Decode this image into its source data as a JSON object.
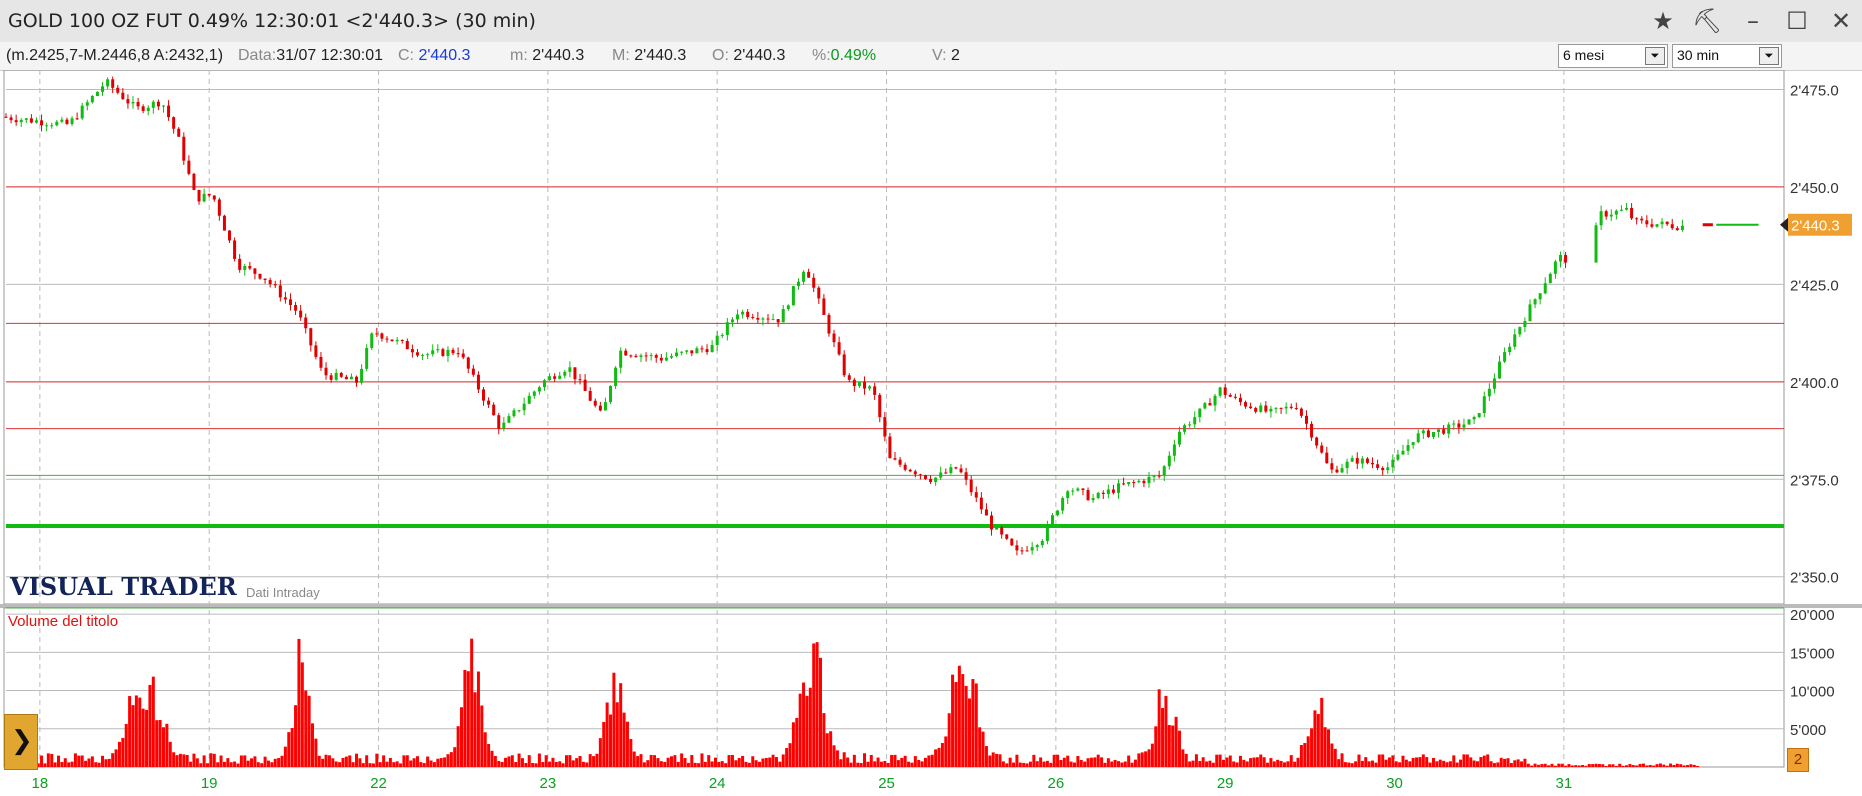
{
  "window": {
    "title": "GOLD 100 OZ FUT 0.49% 12:30:01  <2'440.3> (30 min)",
    "icons": [
      "star-icon",
      "hammer-icon",
      "minimize-icon",
      "maximize-icon",
      "close-icon"
    ],
    "star_glyph": "★",
    "hammer_glyph": "⛏",
    "minimize_glyph": "–",
    "maximize_glyph": "☐",
    "close_glyph": "✕"
  },
  "info": {
    "range": "(m.2425,7-M.2446,8 A:2432,1)",
    "data_label": "Data:",
    "data_value": "31/07 12:30:01",
    "c_label": "C:",
    "c_value": "2'440.3",
    "m_label": "m:",
    "m_value": "2'440.3",
    "M_label": "M:",
    "M_value": "2'440.3",
    "o_label": "O:",
    "o_value": "2'440.3",
    "pct_label": "%:",
    "pct_value": "0.49%",
    "v_label": "V:",
    "v_value": "2",
    "period_select": "6 mesi",
    "interval_select": "30 min",
    "arrow_glyph": "⏷"
  },
  "brand": {
    "logo": "VISUAL TRADER",
    "tag": "Dati Intraday",
    "logo_color": "#12245a"
  },
  "nav": {
    "glyph": "❯",
    "badge": "2"
  },
  "colors": {
    "up": "#11bb11",
    "down": "#e00000",
    "volume": "#ff0000",
    "grid": "#bbbbbb",
    "price_tag": "#f0a030",
    "axis_text": "#333333",
    "date_text": "#0aa020"
  },
  "chart_data": {
    "type": "candlestick",
    "price_axis": {
      "ylim": [
        2343,
        2480
      ],
      "ticks": [
        2350,
        2375,
        2400,
        2425,
        2450,
        2475
      ],
      "tick_labels": [
        "2'350.0",
        "2'375.0",
        "2'400.0",
        "2'425.0",
        "2'450.0",
        "2'475.0"
      ]
    },
    "last_price": 2440.3,
    "last_price_label": "2'440.3",
    "horizontal_lines": [
      {
        "y": 2450,
        "color": "#dd3333",
        "width": 1
      },
      {
        "y": 2415,
        "color": "#dd3333",
        "width": 1
      },
      {
        "y": 2400,
        "color": "#dd3333",
        "width": 1
      },
      {
        "y": 2388,
        "color": "#dd3333",
        "width": 1
      },
      {
        "y": 2376,
        "color": "#33bb33",
        "width": 1
      },
      {
        "y": 2363,
        "color": "#11bb11",
        "width": 4
      },
      {
        "y": 2342,
        "color": "#33bb33",
        "width": 1
      }
    ],
    "date_labels": [
      "18",
      "19",
      "22",
      "23",
      "24",
      "25",
      "26",
      "29",
      "30",
      "31"
    ],
    "date_positions": [
      0.2,
      1.2,
      2.2,
      3.2,
      4.2,
      5.2,
      6.2,
      7.2,
      8.2,
      9.2
    ],
    "x_range": [
      0,
      10.5
    ],
    "anchors": [
      [
        0.0,
        2468
      ],
      [
        0.4,
        2466
      ],
      [
        0.62,
        2477
      ],
      [
        0.8,
        2470
      ],
      [
        0.95,
        2472
      ],
      [
        1.05,
        2462
      ],
      [
        1.15,
        2447
      ],
      [
        1.25,
        2448
      ],
      [
        1.4,
        2430
      ],
      [
        1.55,
        2427
      ],
      [
        1.75,
        2418
      ],
      [
        1.9,
        2402
      ],
      [
        2.1,
        2400
      ],
      [
        2.2,
        2413
      ],
      [
        2.5,
        2407
      ],
      [
        2.7,
        2408
      ],
      [
        2.8,
        2400
      ],
      [
        2.95,
        2388
      ],
      [
        3.2,
        2400
      ],
      [
        3.35,
        2404
      ],
      [
        3.55,
        2391
      ],
      [
        3.65,
        2408
      ],
      [
        3.9,
        2406
      ],
      [
        4.2,
        2409
      ],
      [
        4.35,
        2418
      ],
      [
        4.6,
        2416
      ],
      [
        4.75,
        2430
      ],
      [
        4.9,
        2412
      ],
      [
        5.0,
        2400
      ],
      [
        5.15,
        2398
      ],
      [
        5.25,
        2380
      ],
      [
        5.5,
        2375
      ],
      [
        5.65,
        2378
      ],
      [
        5.85,
        2363
      ],
      [
        6.0,
        2356
      ],
      [
        6.15,
        2360
      ],
      [
        6.3,
        2373
      ],
      [
        6.45,
        2370
      ],
      [
        6.6,
        2373
      ],
      [
        6.85,
        2376
      ],
      [
        6.95,
        2387
      ],
      [
        7.1,
        2393
      ],
      [
        7.2,
        2398
      ],
      [
        7.3,
        2395
      ],
      [
        7.5,
        2392
      ],
      [
        7.65,
        2394
      ],
      [
        7.75,
        2386
      ],
      [
        7.85,
        2377
      ],
      [
        8.0,
        2380
      ],
      [
        8.2,
        2378
      ],
      [
        8.35,
        2386
      ],
      [
        8.55,
        2388
      ],
      [
        8.7,
        2390
      ],
      [
        8.9,
        2409
      ],
      [
        9.2,
        2432
      ],
      [
        9.35,
        2430
      ],
      [
        9.45,
        2443
      ],
      [
        9.6,
        2444
      ],
      [
        9.65,
        2441
      ],
      [
        9.9,
        2440
      ]
    ],
    "gap_after": 9.25,
    "volume_panel": {
      "title": "Volume del titolo",
      "ylim": [
        0,
        20800
      ],
      "ticks": [
        5000,
        10000,
        15000,
        20000
      ],
      "tick_labels": [
        "5'000",
        "10'000",
        "15'000",
        "20'000"
      ],
      "peaks": [
        {
          "x": 0.82,
          "v": 13000,
          "w": 0.12
        },
        {
          "x": 1.75,
          "v": 20000,
          "w": 0.06
        },
        {
          "x": 2.75,
          "v": 16000,
          "w": 0.07
        },
        {
          "x": 3.6,
          "v": 11000,
          "w": 0.08
        },
        {
          "x": 4.75,
          "v": 19500,
          "w": 0.09
        },
        {
          "x": 5.65,
          "v": 17000,
          "w": 0.1
        },
        {
          "x": 6.85,
          "v": 11500,
          "w": 0.08
        },
        {
          "x": 7.75,
          "v": 9500,
          "w": 0.07
        }
      ],
      "base": 1500,
      "end_x": 8.8
    }
  }
}
